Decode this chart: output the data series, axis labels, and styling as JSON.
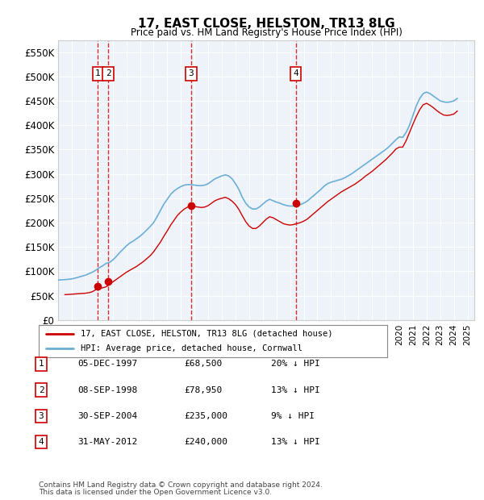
{
  "title": "17, EAST CLOSE, HELSTON, TR13 8LG",
  "subtitle": "Price paid vs. HM Land Registry's House Price Index (HPI)",
  "ylabel": "",
  "ylim": [
    0,
    575000
  ],
  "yticks": [
    0,
    50000,
    100000,
    150000,
    200000,
    250000,
    300000,
    350000,
    400000,
    450000,
    500000,
    550000
  ],
  "ytick_labels": [
    "£0",
    "£50K",
    "£100K",
    "£150K",
    "£200K",
    "£250K",
    "£300K",
    "£350K",
    "£400K",
    "£450K",
    "£500K",
    "£550K"
  ],
  "xlim_start": 1995.0,
  "xlim_end": 2025.5,
  "bg_color": "#eef3fa",
  "plot_bg": "#eef3fa",
  "grid_color": "#ffffff",
  "hpi_color": "#6baed6",
  "price_color": "#cc0000",
  "transaction_color": "#cc0000",
  "dashed_line_color": "#cc0000",
  "transactions": [
    {
      "num": 1,
      "year": 1997.92,
      "price": 68500,
      "label": "1"
    },
    {
      "num": 2,
      "year": 1998.67,
      "price": 78950,
      "label": "2"
    },
    {
      "num": 3,
      "year": 2004.75,
      "price": 235000,
      "label": "3"
    },
    {
      "num": 4,
      "year": 2012.42,
      "price": 240000,
      "label": "4"
    }
  ],
  "transaction_table": [
    {
      "num": "1",
      "date": "05-DEC-1997",
      "price": "£68,500",
      "hpi": "20% ↓ HPI"
    },
    {
      "num": "2",
      "date": "08-SEP-1998",
      "price": "£78,950",
      "hpi": "13% ↓ HPI"
    },
    {
      "num": "3",
      "date": "30-SEP-2004",
      "price": "£235,000",
      "hpi": "9% ↓ HPI"
    },
    {
      "num": "4",
      "date": "31-MAY-2012",
      "price": "£240,000",
      "hpi": "13% ↓ HPI"
    }
  ],
  "legend_line1": "17, EAST CLOSE, HELSTON, TR13 8LG (detached house)",
  "legend_line2": "HPI: Average price, detached house, Cornwall",
  "footer1": "Contains HM Land Registry data © Crown copyright and database right 2024.",
  "footer2": "This data is licensed under the Open Government Licence v3.0.",
  "hpi_data_x": [
    1995.0,
    1995.25,
    1995.5,
    1995.75,
    1996.0,
    1996.25,
    1996.5,
    1996.75,
    1997.0,
    1997.25,
    1997.5,
    1997.75,
    1998.0,
    1998.25,
    1998.5,
    1998.75,
    1999.0,
    1999.25,
    1999.5,
    1999.75,
    2000.0,
    2000.25,
    2000.5,
    2000.75,
    2001.0,
    2001.25,
    2001.5,
    2001.75,
    2002.0,
    2002.25,
    2002.5,
    2002.75,
    2003.0,
    2003.25,
    2003.5,
    2003.75,
    2004.0,
    2004.25,
    2004.5,
    2004.75,
    2005.0,
    2005.25,
    2005.5,
    2005.75,
    2006.0,
    2006.25,
    2006.5,
    2006.75,
    2007.0,
    2007.25,
    2007.5,
    2007.75,
    2008.0,
    2008.25,
    2008.5,
    2008.75,
    2009.0,
    2009.25,
    2009.5,
    2009.75,
    2010.0,
    2010.25,
    2010.5,
    2010.75,
    2011.0,
    2011.25,
    2011.5,
    2011.75,
    2012.0,
    2012.25,
    2012.5,
    2012.75,
    2013.0,
    2013.25,
    2013.5,
    2013.75,
    2014.0,
    2014.25,
    2014.5,
    2014.75,
    2015.0,
    2015.25,
    2015.5,
    2015.75,
    2016.0,
    2016.25,
    2016.5,
    2016.75,
    2017.0,
    2017.25,
    2017.5,
    2017.75,
    2018.0,
    2018.25,
    2018.5,
    2018.75,
    2019.0,
    2019.25,
    2019.5,
    2019.75,
    2020.0,
    2020.25,
    2020.5,
    2020.75,
    2021.0,
    2021.25,
    2021.5,
    2021.75,
    2022.0,
    2022.25,
    2022.5,
    2022.75,
    2023.0,
    2023.25,
    2023.5,
    2023.75,
    2024.0,
    2024.25
  ],
  "hpi_data_y": [
    82000,
    82500,
    83000,
    83500,
    84500,
    86000,
    88000,
    90000,
    92000,
    95000,
    98000,
    102000,
    107000,
    111000,
    116000,
    118000,
    123000,
    130000,
    138000,
    145000,
    152000,
    158000,
    162000,
    167000,
    172000,
    178000,
    185000,
    192000,
    200000,
    212000,
    225000,
    238000,
    248000,
    258000,
    265000,
    270000,
    274000,
    277000,
    278000,
    278000,
    277000,
    276000,
    276000,
    277000,
    280000,
    285000,
    290000,
    293000,
    296000,
    298000,
    296000,
    290000,
    280000,
    268000,
    252000,
    240000,
    232000,
    228000,
    228000,
    232000,
    238000,
    244000,
    248000,
    245000,
    242000,
    240000,
    237000,
    235000,
    234000,
    234000,
    235000,
    237000,
    240000,
    244000,
    250000,
    256000,
    262000,
    268000,
    275000,
    280000,
    283000,
    285000,
    287000,
    289000,
    292000,
    296000,
    300000,
    305000,
    310000,
    315000,
    320000,
    325000,
    330000,
    335000,
    340000,
    345000,
    350000,
    356000,
    363000,
    370000,
    376000,
    375000,
    385000,
    400000,
    420000,
    440000,
    455000,
    465000,
    468000,
    465000,
    460000,
    455000,
    450000,
    448000,
    447000,
    448000,
    450000,
    455000
  ],
  "price_data_x": [
    1995.5,
    1996.0,
    1996.5,
    1997.0,
    1997.25,
    1997.5,
    1997.75,
    1998.0,
    1998.25,
    1998.5,
    1998.67,
    1998.75,
    1999.0,
    1999.25,
    1999.5,
    1999.75,
    2000.0,
    2000.25,
    2000.5,
    2000.75,
    2001.0,
    2001.25,
    2001.5,
    2001.75,
    2002.0,
    2002.25,
    2002.5,
    2002.75,
    2003.0,
    2003.25,
    2003.5,
    2003.75,
    2004.0,
    2004.25,
    2004.5,
    2004.75,
    2005.0,
    2005.25,
    2005.5,
    2005.75,
    2006.0,
    2006.25,
    2006.5,
    2006.75,
    2007.0,
    2007.25,
    2007.5,
    2007.75,
    2008.0,
    2008.25,
    2008.5,
    2008.75,
    2009.0,
    2009.25,
    2009.5,
    2009.75,
    2010.0,
    2010.25,
    2010.5,
    2010.75,
    2011.0,
    2011.25,
    2011.5,
    2011.75,
    2012.0,
    2012.25,
    2012.5,
    2012.75,
    2013.0,
    2013.25,
    2013.5,
    2013.75,
    2014.0,
    2014.25,
    2014.5,
    2014.75,
    2015.0,
    2015.25,
    2015.5,
    2015.75,
    2016.0,
    2016.25,
    2016.5,
    2016.75,
    2017.0,
    2017.25,
    2017.5,
    2017.75,
    2018.0,
    2018.25,
    2018.5,
    2018.75,
    2019.0,
    2019.25,
    2019.5,
    2019.75,
    2020.0,
    2020.25,
    2020.5,
    2020.75,
    2021.0,
    2021.25,
    2021.5,
    2021.75,
    2022.0,
    2022.25,
    2022.5,
    2022.75,
    2023.0,
    2023.25,
    2023.5,
    2023.75,
    2024.0,
    2024.25
  ],
  "price_data_y": [
    52000,
    53000,
    54000,
    55000,
    56000,
    58000,
    62000,
    65000,
    66000,
    68000,
    71000,
    74000,
    78000,
    83000,
    88000,
    93000,
    98000,
    102000,
    106000,
    110000,
    115000,
    120000,
    126000,
    132000,
    140000,
    150000,
    160000,
    172000,
    183000,
    195000,
    205000,
    215000,
    222000,
    228000,
    232000,
    235000,
    233000,
    232000,
    231000,
    232000,
    235000,
    240000,
    245000,
    248000,
    250000,
    252000,
    249000,
    244000,
    237000,
    227000,
    214000,
    202000,
    193000,
    188000,
    188000,
    193000,
    200000,
    207000,
    212000,
    210000,
    206000,
    202000,
    198000,
    196000,
    195000,
    196000,
    198000,
    200000,
    203000,
    207000,
    213000,
    219000,
    225000,
    231000,
    237000,
    243000,
    248000,
    253000,
    258000,
    263000,
    267000,
    271000,
    275000,
    279000,
    284000,
    289000,
    295000,
    300000,
    305000,
    311000,
    317000,
    323000,
    329000,
    336000,
    343000,
    351000,
    355000,
    355000,
    368000,
    385000,
    402000,
    418000,
    432000,
    442000,
    445000,
    441000,
    436000,
    430000,
    425000,
    421000,
    420000,
    421000,
    423000,
    429000
  ]
}
